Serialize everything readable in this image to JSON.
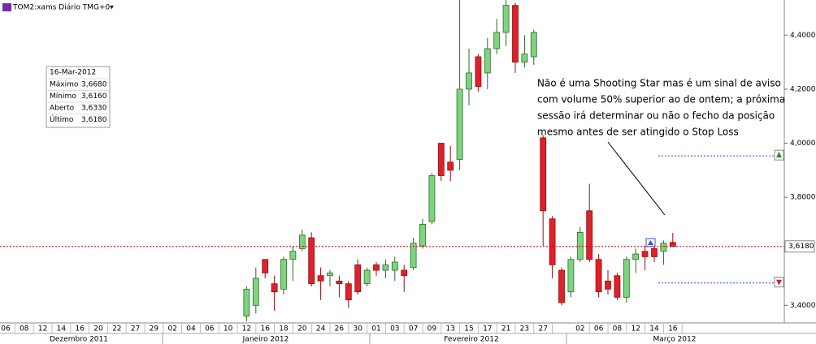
{
  "chart_data": {
    "type": "candlestick",
    "title": "TOM2:xams Diário TMG+0▾",
    "categories": [
      "06",
      null,
      "08",
      null,
      "12",
      null,
      "14",
      null,
      "16",
      null,
      "20",
      null,
      "22",
      null,
      "27",
      null,
      "29",
      null,
      "02",
      null,
      "04",
      null,
      "06",
      null,
      "10",
      null,
      "12",
      null,
      "16",
      null,
      "18",
      null,
      "20",
      null,
      "24",
      null,
      "26",
      null,
      "30",
      null,
      "01",
      null,
      "03",
      null,
      "07",
      null,
      "09",
      null,
      "13",
      null,
      "15",
      null,
      "17",
      null,
      "21",
      null,
      "23",
      null,
      "27",
      null,
      null,
      null,
      "02",
      null,
      "06",
      null,
      "08",
      null,
      "12",
      null,
      "14",
      null,
      "16"
    ],
    "months": [
      "Dezembro 2011",
      "Janeiro 2012",
      "Fevereiro 2012",
      "Março 2012"
    ],
    "open": [
      null,
      null,
      null,
      null,
      null,
      null,
      null,
      null,
      null,
      null,
      null,
      null,
      null,
      null,
      null,
      null,
      null,
      null,
      null,
      null,
      null,
      null,
      null,
      null,
      null,
      null,
      3.36,
      3.4,
      3.57,
      3.48,
      3.46,
      3.57,
      3.61,
      3.65,
      3.51,
      3.51,
      3.49,
      3.48,
      3.55,
      3.48,
      3.55,
      3.53,
      3.53,
      3.53,
      3.54,
      3.62,
      3.71,
      4.0,
      3.93,
      3.94,
      4.2,
      4.32,
      4.26,
      4.35,
      4.41,
      4.51,
      4.3,
      4.32,
      4.02,
      3.72,
      3.53,
      3.45,
      3.57,
      3.75,
      3.57,
      3.49,
      3.51,
      3.43,
      3.57,
      3.6,
      3.61,
      3.6,
      3.633
    ],
    "high": [
      null,
      null,
      null,
      null,
      null,
      null,
      null,
      null,
      null,
      null,
      null,
      null,
      null,
      null,
      null,
      null,
      null,
      null,
      null,
      null,
      null,
      null,
      null,
      null,
      null,
      null,
      3.47,
      3.54,
      3.57,
      3.51,
      3.58,
      3.62,
      3.68,
      3.67,
      3.54,
      3.53,
      3.51,
      3.49,
      3.57,
      3.54,
      3.56,
      3.57,
      3.58,
      3.55,
      3.65,
      3.72,
      3.89,
      4.0,
      3.99,
      4.53,
      4.35,
      4.33,
      4.39,
      4.46,
      4.53,
      4.52,
      4.4,
      4.42,
      4.03,
      3.73,
      3.54,
      3.58,
      3.69,
      3.85,
      3.59,
      3.53,
      3.52,
      3.58,
      3.61,
      3.62,
      3.62,
      3.64,
      3.668
    ],
    "low": [
      null,
      null,
      null,
      null,
      null,
      null,
      null,
      null,
      null,
      null,
      null,
      null,
      null,
      null,
      null,
      null,
      null,
      null,
      null,
      null,
      null,
      null,
      null,
      null,
      null,
      null,
      3.34,
      3.37,
      3.5,
      3.38,
      3.44,
      3.49,
      3.6,
      3.47,
      3.42,
      3.47,
      3.43,
      3.39,
      3.44,
      3.47,
      3.51,
      3.5,
      3.49,
      3.45,
      3.53,
      3.61,
      3.7,
      3.86,
      3.86,
      3.9,
      4.14,
      4.19,
      4.2,
      4.33,
      4.36,
      4.26,
      4.28,
      4.29,
      3.62,
      3.5,
      3.4,
      3.43,
      3.56,
      3.56,
      3.43,
      3.44,
      3.42,
      3.41,
      3.52,
      3.53,
      3.56,
      3.55,
      3.616
    ],
    "close": [
      null,
      null,
      null,
      null,
      null,
      null,
      null,
      null,
      null,
      null,
      null,
      null,
      null,
      null,
      null,
      null,
      null,
      null,
      null,
      null,
      null,
      null,
      null,
      null,
      null,
      null,
      3.46,
      3.5,
      3.52,
      3.45,
      3.57,
      3.6,
      3.66,
      3.48,
      3.49,
      3.52,
      3.48,
      3.42,
      3.45,
      3.53,
      3.53,
      3.55,
      3.56,
      3.51,
      3.63,
      3.7,
      3.88,
      3.88,
      3.9,
      4.2,
      4.26,
      4.21,
      4.35,
      4.41,
      4.51,
      4.3,
      4.33,
      4.41,
      3.75,
      3.55,
      3.41,
      3.57,
      3.67,
      3.57,
      3.45,
      3.46,
      3.43,
      3.57,
      3.59,
      3.58,
      3.58,
      3.63,
      3.618
    ],
    "up_color": "#7fd47f",
    "down_color": "#e0202a",
    "ylim": [
      3.335,
      4.53
    ],
    "yticks": [
      {
        "value": 3.4,
        "label": "3,4000"
      },
      {
        "value": 3.8,
        "label": "3,8000"
      },
      {
        "value": 4.0,
        "label": "4,0000"
      },
      {
        "value": 4.2,
        "label": "4,2000"
      },
      {
        "value": 4.4,
        "label": "4,4000"
      }
    ],
    "last_price": {
      "value": 3.618,
      "label": "3,6180",
      "color": "#d00000"
    },
    "levels": [
      {
        "value": 3.953,
        "color": "#3050e0"
      },
      {
        "value": 3.483,
        "color": "#3050e0"
      }
    ],
    "annotation": [
      "Não é uma Shooting Star mas é um sinal de aviso",
      "com volume 50% superior ao de ontem; a próxima",
      "sessão irá determinar ou não o fecho da posição",
      "mesmo antes de ser atingido o Stop Loss"
    ],
    "info_box": {
      "date": "16-Mar-2012",
      "rows": [
        [
          "Máximo",
          "3,6680"
        ],
        [
          "Mínimo",
          "3,6160"
        ],
        [
          "Aberto",
          "3,6330"
        ],
        [
          "Último",
          "3,6180"
        ]
      ]
    }
  }
}
